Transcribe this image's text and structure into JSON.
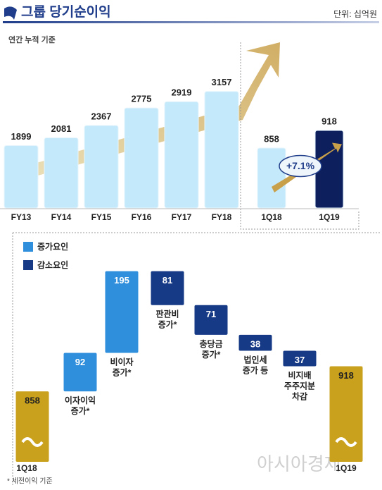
{
  "header": {
    "title": "그룹 당기순이익",
    "unit": "단위: 십억원",
    "subtitle": "연간 누적 기준"
  },
  "chart_data": [
    {
      "type": "bar",
      "categories": [
        "FY13",
        "FY14",
        "FY15",
        "FY16",
        "FY17",
        "FY18"
      ],
      "values": [
        1899,
        2081,
        2367,
        2775,
        2919,
        3157
      ],
      "color": "#c4e9fa",
      "ylim": [
        450,
        4300
      ]
    },
    {
      "type": "bar",
      "categories": [
        "1Q18",
        "1Q19"
      ],
      "values": [
        858,
        918
      ],
      "colors": [
        "#c4e9fa",
        "#0e1f5e"
      ],
      "ylim": [
        654,
        1050
      ],
      "annotation": "+7.1%"
    },
    {
      "type": "waterfall",
      "categories": [
        [
          "1Q18"
        ],
        [
          "이자이익",
          "증가*"
        ],
        [
          "비이자",
          "증가*"
        ],
        [
          "판관비",
          "증가*"
        ],
        [
          "충당금",
          "증가*"
        ],
        [
          "법인세",
          "증가 등"
        ],
        [
          "비지배",
          "주주지분",
          "차감"
        ],
        [
          "1Q19"
        ]
      ],
      "values": [
        858,
        92,
        195,
        -81,
        -71,
        -38,
        -37,
        918
      ],
      "value_labels": [
        "858",
        "92",
        "195",
        "81",
        "71",
        "38",
        "37",
        "918"
      ],
      "series": [
        {
          "name": "증가요인",
          "color": "#2f8fdc"
        },
        {
          "name": "감소요인",
          "color": "#173a86"
        }
      ],
      "total_color": "#c9a11c",
      "ylim": [
        690,
        1220
      ]
    }
  ],
  "footnote": "* 세전이익 기준",
  "watermark": "아시아경제"
}
